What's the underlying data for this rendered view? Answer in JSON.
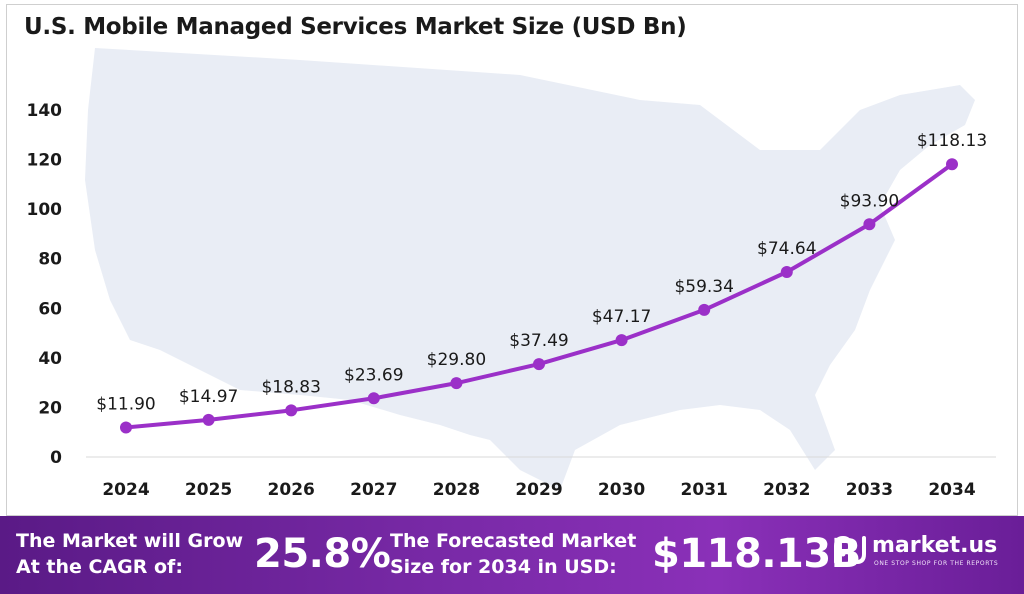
{
  "chart_data": {
    "type": "line",
    "title": "U.S. Mobile Managed Services Market Size (USD Bn)",
    "xlabel": "",
    "ylabel": "",
    "categories": [
      "2024",
      "2025",
      "2026",
      "2027",
      "2028",
      "2029",
      "2030",
      "2031",
      "2032",
      "2033",
      "2034"
    ],
    "values": [
      11.9,
      14.97,
      18.83,
      23.69,
      29.8,
      37.49,
      47.17,
      59.34,
      74.64,
      93.9,
      118.13
    ],
    "data_labels": [
      "$11.90",
      "$14.97",
      "$18.83",
      "$23.69",
      "$29.80",
      "$37.49",
      "$47.17",
      "$59.34",
      "$74.64",
      "$93.90",
      "$118.13"
    ],
    "ylim": [
      0,
      140
    ],
    "yticks": [
      0,
      20,
      40,
      60,
      80,
      100,
      120,
      140
    ],
    "ytick_labels": [
      "0",
      "20",
      "40",
      "60",
      "80",
      "100",
      "120",
      "140"
    ],
    "grid": false,
    "line_color": "#9b30c8",
    "background": "U.S. map silhouette"
  },
  "banner": {
    "cagr_text_line1": "The Market will Grow",
    "cagr_text_line2": "At the CAGR of:",
    "cagr_value": "25.8%",
    "forecast_text_line1": "The Forecasted Market",
    "forecast_text_line2": "Size for 2034 in USD:",
    "forecast_value": "$118.13B",
    "brand": "market.us",
    "tagline": "ONE STOP SHOP FOR THE REPORTS",
    "logo_icon": "market-us-logo-icon"
  },
  "colors": {
    "banner_start": "#5a1a86",
    "banner_end": "#8a30b8",
    "map_fill": "#e8ecf4"
  }
}
